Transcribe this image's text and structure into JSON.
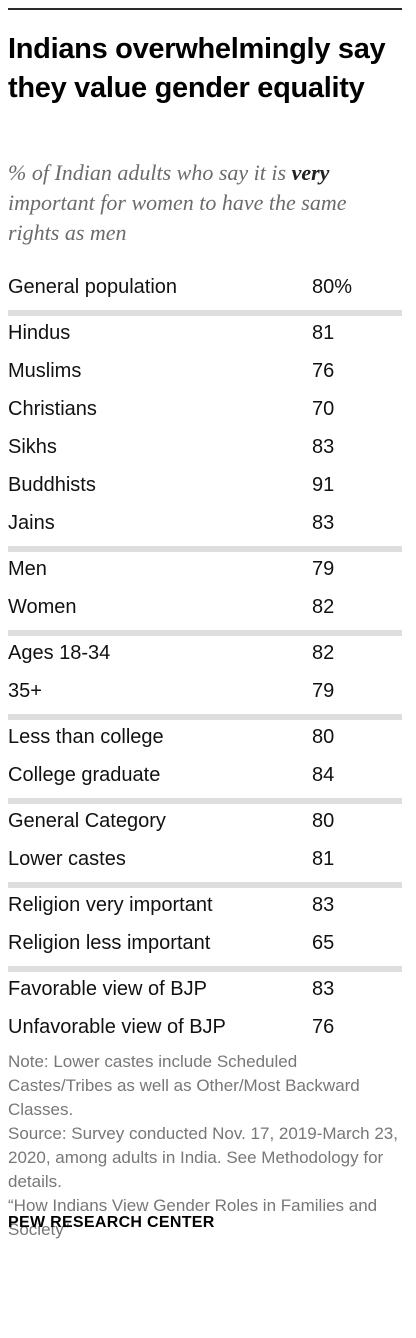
{
  "header": {
    "title": "Indians overwhelmingly say they value gender equality",
    "subtitle_pre": "% of Indian adults who say it is ",
    "subtitle_emph": "very",
    "subtitle_post": " important for women to have the same rights as men"
  },
  "chart_data": {
    "type": "table",
    "groups": [
      {
        "rows": [
          {
            "label": "General population",
            "value": "80%"
          }
        ]
      },
      {
        "rows": [
          {
            "label": "Hindus",
            "value": "81"
          },
          {
            "label": "Muslims",
            "value": "76"
          },
          {
            "label": "Christians",
            "value": "70"
          },
          {
            "label": "Sikhs",
            "value": "83"
          },
          {
            "label": "Buddhists",
            "value": "91"
          },
          {
            "label": "Jains",
            "value": "83"
          }
        ]
      },
      {
        "rows": [
          {
            "label": "Men",
            "value": "79"
          },
          {
            "label": "Women",
            "value": "82"
          }
        ]
      },
      {
        "rows": [
          {
            "label": "Ages 18-34",
            "value": "82"
          },
          {
            "label": "35+",
            "value": "79"
          }
        ]
      },
      {
        "rows": [
          {
            "label": "Less than college",
            "value": "80"
          },
          {
            "label": "College graduate",
            "value": "84"
          }
        ]
      },
      {
        "rows": [
          {
            "label": "General Category",
            "value": "80"
          },
          {
            "label": "Lower castes",
            "value": "81"
          }
        ]
      },
      {
        "rows": [
          {
            "label": "Religion very important",
            "value": "83"
          },
          {
            "label": "Religion less important",
            "value": "65"
          }
        ]
      },
      {
        "rows": [
          {
            "label": "Favorable view of BJP",
            "value": "83"
          },
          {
            "label": "Unfavorable view of BJP",
            "value": "76"
          }
        ]
      }
    ]
  },
  "notes": {
    "note": "Note: Lower castes include Scheduled Castes/Tribes as well as Other/Most Backward Classes.",
    "source": "Source: Survey conducted Nov. 17, 2019-March 23, 2020, among adults in India. See Methodology for details.",
    "report": "“How Indians View Gender Roles in Families and Society”"
  },
  "brand": "PEW RESEARCH CENTER",
  "colors": {
    "separator": "#dedede",
    "title": "#000000",
    "subtitle": "#6b6b6b",
    "notes": "#777777"
  }
}
